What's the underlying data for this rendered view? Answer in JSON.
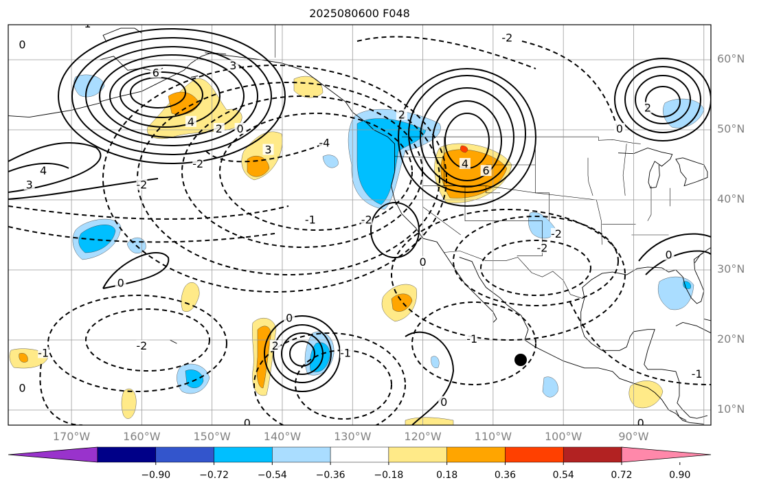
{
  "title": "2025080600 F048",
  "lat_labels": [
    "60°N",
    "50°N",
    "40°N",
    "30°N",
    "20°N",
    "10°N"
  ],
  "lon_labels": [
    "170°W",
    "160°W",
    "150°W",
    "140°W",
    "130°W",
    "120°W",
    "110°W",
    "100°W",
    "90°W"
  ],
  "colorbar": {
    "colors": [
      "#9933cc",
      "#000088",
      "#3355cc",
      "#00bfff",
      "#aaddff",
      "#ffffff",
      "#ffea88",
      "#ffa500",
      "#ff4000",
      "#b22222",
      "#ff88aa"
    ],
    "tick_labels": [
      "−0.90",
      "−0.72",
      "−0.54",
      "−0.36",
      "−0.18",
      "0.18",
      "0.36",
      "0.54",
      "0.72",
      "0.90"
    ]
  },
  "contour_labels": [
    {
      "text": "-1",
      "lon": -168,
      "lat": 65
    },
    {
      "text": "0",
      "lon": -177,
      "lat": 62
    },
    {
      "text": "3",
      "lon": -147,
      "lat": 59
    },
    {
      "text": "6",
      "lon": -158,
      "lat": 58
    },
    {
      "text": "4",
      "lon": -153,
      "lat": 51
    },
    {
      "text": "2",
      "lon": -149,
      "lat": 50
    },
    {
      "text": "0",
      "lon": -146,
      "lat": 50
    },
    {
      "text": "3",
      "lon": -142,
      "lat": 47
    },
    {
      "text": "4",
      "lon": -174,
      "lat": 44
    },
    {
      "text": "3",
      "lon": -176,
      "lat": 42
    },
    {
      "text": "-2",
      "lon": -160,
      "lat": 42
    },
    {
      "text": "-2",
      "lon": -152,
      "lat": 45
    },
    {
      "text": "-4",
      "lon": -134,
      "lat": 48
    },
    {
      "text": "-1",
      "lon": -136,
      "lat": 37
    },
    {
      "text": "-2",
      "lon": -128,
      "lat": 37
    },
    {
      "text": "0",
      "lon": -163,
      "lat": 28
    },
    {
      "text": "2",
      "lon": -123,
      "lat": 52
    },
    {
      "text": "4",
      "lon": -114,
      "lat": 45
    },
    {
      "text": "6",
      "lon": -111,
      "lat": 44
    },
    {
      "text": "-2",
      "lon": -108,
      "lat": 63
    },
    {
      "text": "-2",
      "lon": -101,
      "lat": 35
    },
    {
      "text": "-2",
      "lon": -103,
      "lat": 33
    },
    {
      "text": "0",
      "lon": -120,
      "lat": 31
    },
    {
      "text": "2",
      "lon": -88,
      "lat": 53
    },
    {
      "text": "0",
      "lon": -92,
      "lat": 50
    },
    {
      "text": "0",
      "lon": -85,
      "lat": 32
    },
    {
      "text": "-2",
      "lon": -160,
      "lat": 19
    },
    {
      "text": "-1",
      "lon": -174,
      "lat": 18
    },
    {
      "text": "-1",
      "lon": -113,
      "lat": 20
    },
    {
      "text": "0",
      "lon": -139,
      "lat": 23
    },
    {
      "text": "2",
      "lon": -141,
      "lat": 19
    },
    {
      "text": "-1",
      "lon": -131,
      "lat": 18
    },
    {
      "text": "0",
      "lon": -177,
      "lat": 13
    },
    {
      "text": "0",
      "lon": -117,
      "lat": 11
    },
    {
      "text": "0",
      "lon": -145,
      "lat": 8
    },
    {
      "text": "0",
      "lon": -89,
      "lat": 8
    },
    {
      "text": "-1",
      "lon": -81,
      "lat": 15
    }
  ]
}
